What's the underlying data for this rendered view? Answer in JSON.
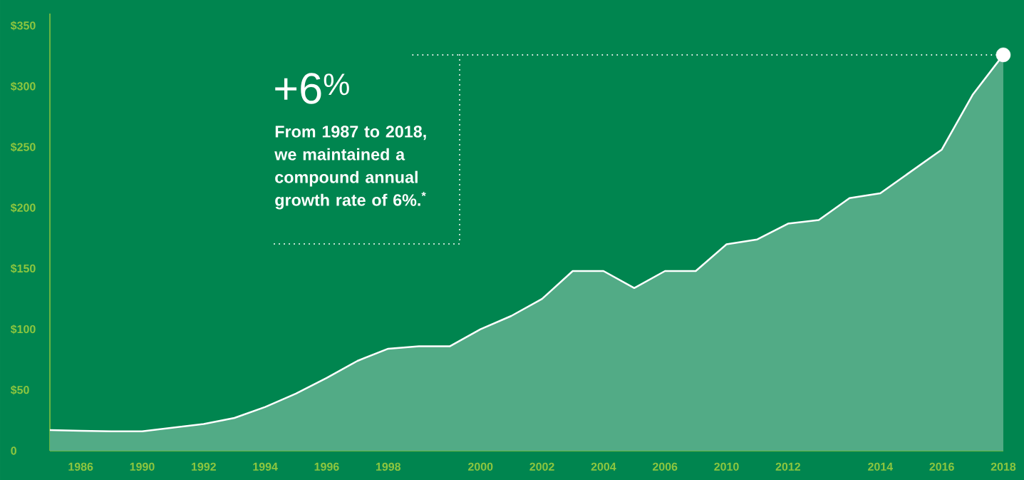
{
  "chart_data": {
    "type": "area",
    "categories": [
      null,
      "1986",
      null,
      "1990",
      null,
      "1992",
      null,
      "1994",
      null,
      "1996",
      null,
      "1998",
      null,
      null,
      "2000",
      null,
      "2002",
      null,
      "2004",
      null,
      "2006",
      null,
      "2010",
      null,
      "2012",
      null,
      null,
      "2014",
      null,
      "2016",
      null,
      "2018"
    ],
    "ylim": [
      0,
      360
    ],
    "yticks": [
      0,
      {
        "value": 50,
        "label": "$50"
      },
      {
        "value": 100,
        "label": "$100"
      },
      {
        "value": 150,
        "label": "$150"
      },
      {
        "value": 200,
        "label": "$200"
      },
      {
        "value": 250,
        "label": "$250"
      },
      {
        "value": 300,
        "label": "$300"
      },
      {
        "value": 350,
        "label": "$350"
      }
    ],
    "series": [
      {
        "color": "#52ab86",
        "values": [
          17,
          16.5,
          16,
          16,
          19,
          22,
          27,
          36,
          47,
          60,
          74,
          84,
          86,
          86,
          100,
          111,
          125,
          148,
          148,
          134,
          148,
          148,
          170,
          174,
          187,
          190,
          208,
          212,
          230,
          248,
          293,
          326
        ]
      },
      {
        "type": "scatter",
        "marker": "circle",
        "color": "#ffffff",
        "values": [
          null,
          null,
          null,
          null,
          null,
          null,
          null,
          null,
          null,
          null,
          null,
          null,
          null,
          null,
          null,
          null,
          null,
          null,
          null,
          null,
          null,
          null,
          null,
          null,
          null,
          null,
          null,
          null,
          null,
          null,
          null,
          326
        ]
      }
    ],
    "ref_lines": [
      {
        "axis": "y",
        "value": 326,
        "color": "#ffffff",
        "line_style": "dotted"
      }
    ],
    "annotations": [
      "+6$^{%}$",
      "From 1987 to 2018, we maintained a compound annual growth rate of 6%.$^{*}$"
    ]
  }
}
